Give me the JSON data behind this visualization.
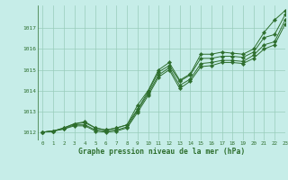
{
  "title": "Graphe pression niveau de la mer (hPa)",
  "background_color": "#c6ede8",
  "grid_color": "#99ccbb",
  "line_color": "#2d6e2d",
  "xlim": [
    -0.5,
    23
  ],
  "ylim": [
    1011.6,
    1018.1
  ],
  "yticks": [
    1012,
    1013,
    1014,
    1015,
    1016,
    1017
  ],
  "xticks": [
    0,
    1,
    2,
    3,
    4,
    5,
    6,
    7,
    8,
    9,
    10,
    11,
    12,
    13,
    14,
    15,
    16,
    17,
    18,
    19,
    20,
    21,
    22,
    23
  ],
  "series1": [
    1012.0,
    1012.05,
    1012.2,
    1012.4,
    1012.5,
    1012.2,
    1012.1,
    1012.2,
    1012.35,
    1013.3,
    1014.0,
    1015.0,
    1015.35,
    1014.5,
    1014.8,
    1015.75,
    1015.75,
    1015.85,
    1015.8,
    1015.75,
    1016.0,
    1016.8,
    1017.4,
    1017.85
  ],
  "series2": [
    1012.0,
    1012.05,
    1012.2,
    1012.4,
    1012.45,
    1012.2,
    1012.1,
    1012.2,
    1012.35,
    1013.1,
    1013.95,
    1014.9,
    1015.2,
    1014.45,
    1014.75,
    1015.55,
    1015.55,
    1015.65,
    1015.65,
    1015.6,
    1015.85,
    1016.55,
    1016.7,
    1017.65
  ],
  "series3": [
    1012.0,
    1012.05,
    1012.15,
    1012.35,
    1012.35,
    1012.1,
    1012.05,
    1012.1,
    1012.25,
    1013.05,
    1013.85,
    1014.75,
    1015.1,
    1014.25,
    1014.55,
    1015.3,
    1015.35,
    1015.45,
    1015.45,
    1015.4,
    1015.7,
    1016.2,
    1016.35,
    1017.4
  ],
  "series4": [
    1012.0,
    1012.05,
    1012.15,
    1012.3,
    1012.3,
    1012.05,
    1012.0,
    1012.05,
    1012.2,
    1012.95,
    1013.75,
    1014.65,
    1015.0,
    1014.1,
    1014.45,
    1015.15,
    1015.2,
    1015.35,
    1015.35,
    1015.3,
    1015.55,
    1016.0,
    1016.2,
    1017.2
  ]
}
